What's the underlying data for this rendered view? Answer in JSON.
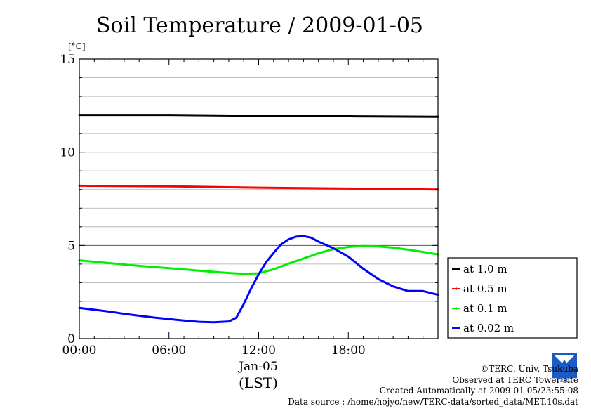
{
  "chart_data": {
    "type": "line",
    "title": "Soil Temperature / 2009-01-05",
    "y_unit": "[°C]",
    "xlabel": "(LST)",
    "x_date_label": "Jan-05",
    "xlim": [
      0,
      24
    ],
    "ylim": [
      0,
      15
    ],
    "x_ticks": [
      0,
      6,
      12,
      18
    ],
    "x_tick_labels": [
      "00:00",
      "06:00",
      "12:00",
      "18:00"
    ],
    "y_ticks": [
      0,
      5,
      10,
      15
    ],
    "y_tick_labels": [
      "0",
      "5",
      "10",
      "15"
    ],
    "y_minor_step": 1,
    "grid": true,
    "legend_position": "right",
    "series": [
      {
        "name": "at 1.0 m",
        "color": "#000000",
        "x": [
          0,
          6,
          12,
          18,
          24
        ],
        "y": [
          12.0,
          12.0,
          11.95,
          11.93,
          11.9
        ]
      },
      {
        "name": "at 0.5 m",
        "color": "#ff0000",
        "x": [
          0,
          6,
          12,
          18,
          24
        ],
        "y": [
          8.2,
          8.17,
          8.1,
          8.05,
          8.0
        ]
      },
      {
        "name": "at 0.1 m",
        "color": "#00ee00",
        "x": [
          0,
          2,
          4,
          6,
          8,
          10,
          11,
          12,
          13,
          14,
          15,
          16,
          17,
          18,
          19,
          20,
          21,
          22,
          23,
          24
        ],
        "y": [
          4.2,
          4.05,
          3.9,
          3.78,
          3.65,
          3.52,
          3.48,
          3.5,
          3.72,
          4.02,
          4.3,
          4.58,
          4.8,
          4.92,
          4.97,
          4.95,
          4.88,
          4.77,
          4.65,
          4.52
        ]
      },
      {
        "name": "at 0.02 m",
        "color": "#0000ff",
        "x": [
          0,
          1,
          2,
          3,
          4,
          5,
          6,
          7,
          8,
          9,
          10,
          10.5,
          11,
          11.5,
          12,
          12.5,
          13,
          13.5,
          14,
          14.5,
          15,
          15.5,
          16,
          17,
          18,
          19,
          20,
          21,
          22,
          23,
          24
        ],
        "y": [
          1.65,
          1.55,
          1.45,
          1.33,
          1.23,
          1.13,
          1.05,
          0.97,
          0.9,
          0.88,
          0.92,
          1.12,
          1.85,
          2.7,
          3.45,
          4.1,
          4.6,
          5.05,
          5.32,
          5.47,
          5.5,
          5.42,
          5.2,
          4.85,
          4.4,
          3.75,
          3.2,
          2.8,
          2.55,
          2.55,
          2.35
        ]
      }
    ]
  },
  "footer": {
    "copyright": "©TERC, Univ. Tsukuba",
    "site": "Observed at TERC Tower site",
    "created": "Created Automatically at 2009-01-05/23:55:08",
    "source": "Data source : /home/hojyo/new/TERC-data/sorted_data/MET.10s.dat",
    "logo_text": "TERC"
  }
}
